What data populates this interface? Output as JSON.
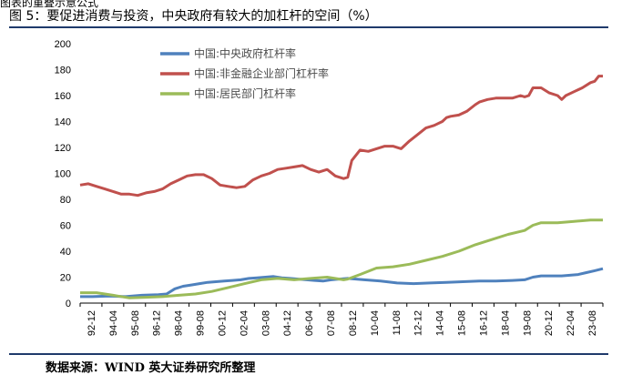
{
  "header": {
    "cut_text": "图表的重叠示意公式",
    "title": "图 5：要促进消费与投资，中央政府有较大的加杠杆的空间（%）"
  },
  "source": {
    "text": "数据来源：WIND  英大证券研究所整理"
  },
  "chart_data": {
    "type": "line",
    "title": "图 5：要促进消费与投资，中央政府有较大的加杠杆的空间（%）",
    "xlabel": "",
    "ylabel": "",
    "ylim": [
      0,
      200
    ],
    "yticks": [
      "0",
      "20",
      "40",
      "60",
      "80",
      "100",
      "120",
      "140",
      "160",
      "180",
      "200"
    ],
    "grid": false,
    "legend_position": "top-left",
    "x_ticks": [
      "92-12",
      "94-04",
      "95-08",
      "96-12",
      "98-04",
      "99-08",
      "00-12",
      "02-04",
      "03-08",
      "04-12",
      "06-04",
      "07-08",
      "08-12",
      "10-04",
      "11-08",
      "12-12",
      "14-04",
      "15-08",
      "16-12",
      "18-04",
      "19-08",
      "20-12",
      "22-04",
      "23-08"
    ],
    "x_range": [
      1992.75,
      2024.5
    ],
    "series": [
      {
        "name": "中国:中央政府杠杆率",
        "color": "#4f81bd",
        "points": [
          [
            1992.75,
            5
          ],
          [
            1993.5,
            5
          ],
          [
            1994.5,
            5.5
          ],
          [
            1995.5,
            5
          ],
          [
            1996.5,
            6
          ],
          [
            1997.5,
            6.5
          ],
          [
            1998.0,
            7
          ],
          [
            1998.5,
            11
          ],
          [
            1999.0,
            13
          ],
          [
            1999.5,
            14
          ],
          [
            2000.0,
            15
          ],
          [
            2000.5,
            16
          ],
          [
            2001.0,
            16.5
          ],
          [
            2001.5,
            17
          ],
          [
            2002.0,
            17.5
          ],
          [
            2002.5,
            18
          ],
          [
            2003.0,
            19
          ],
          [
            2003.5,
            19.5
          ],
          [
            2004.0,
            20
          ],
          [
            2004.5,
            20.5
          ],
          [
            2005.0,
            19.5
          ],
          [
            2005.5,
            19
          ],
          [
            2006.0,
            18.5
          ],
          [
            2006.5,
            18
          ],
          [
            2007.0,
            17.5
          ],
          [
            2007.5,
            17
          ],
          [
            2008.0,
            18
          ],
          [
            2008.5,
            18.5
          ],
          [
            2009.0,
            19
          ],
          [
            2009.5,
            18.5
          ],
          [
            2010.0,
            18
          ],
          [
            2011.0,
            17
          ],
          [
            2012.0,
            15.5
          ],
          [
            2013.0,
            15
          ],
          [
            2014.0,
            15.5
          ],
          [
            2015.0,
            16
          ],
          [
            2016.0,
            16.5
          ],
          [
            2017.0,
            17
          ],
          [
            2018.0,
            17
          ],
          [
            2019.0,
            17.5
          ],
          [
            2019.75,
            18
          ],
          [
            2020.25,
            20
          ],
          [
            2020.75,
            21
          ],
          [
            2021.5,
            21
          ],
          [
            2022.0,
            21
          ],
          [
            2022.5,
            21.5
          ],
          [
            2023.0,
            22
          ],
          [
            2023.5,
            23.5
          ],
          [
            2024.0,
            25
          ],
          [
            2024.5,
            26.5
          ]
        ]
      },
      {
        "name": "中国:非金融企业部门杠杆率",
        "color": "#c0504d",
        "points": [
          [
            1992.75,
            91
          ],
          [
            1993.25,
            92
          ],
          [
            1993.75,
            90
          ],
          [
            1994.25,
            88
          ],
          [
            1994.75,
            86
          ],
          [
            1995.25,
            84
          ],
          [
            1995.75,
            84
          ],
          [
            1996.25,
            83
          ],
          [
            1996.75,
            85
          ],
          [
            1997.25,
            86
          ],
          [
            1997.75,
            88
          ],
          [
            1998.25,
            92
          ],
          [
            1998.75,
            95
          ],
          [
            1999.25,
            98
          ],
          [
            1999.75,
            99
          ],
          [
            2000.25,
            99
          ],
          [
            2000.75,
            96
          ],
          [
            2001.25,
            91
          ],
          [
            2001.75,
            90
          ],
          [
            2002.25,
            89
          ],
          [
            2002.75,
            90
          ],
          [
            2003.25,
            95
          ],
          [
            2003.75,
            98
          ],
          [
            2004.25,
            100
          ],
          [
            2004.75,
            103
          ],
          [
            2005.25,
            104
          ],
          [
            2005.75,
            105
          ],
          [
            2006.25,
            106
          ],
          [
            2006.75,
            103
          ],
          [
            2007.25,
            101
          ],
          [
            2007.75,
            103
          ],
          [
            2008.25,
            98
          ],
          [
            2008.75,
            96
          ],
          [
            2009.0,
            97
          ],
          [
            2009.25,
            110
          ],
          [
            2009.75,
            118
          ],
          [
            2010.25,
            117
          ],
          [
            2010.75,
            119
          ],
          [
            2011.25,
            121
          ],
          [
            2011.75,
            121
          ],
          [
            2012.25,
            119
          ],
          [
            2012.75,
            125
          ],
          [
            2013.25,
            130
          ],
          [
            2013.75,
            135
          ],
          [
            2014.25,
            137
          ],
          [
            2014.75,
            140
          ],
          [
            2015.0,
            143
          ],
          [
            2015.25,
            144
          ],
          [
            2015.75,
            145
          ],
          [
            2016.25,
            148
          ],
          [
            2016.75,
            153
          ],
          [
            2017.0,
            155
          ],
          [
            2017.5,
            157
          ],
          [
            2018.0,
            158
          ],
          [
            2018.5,
            158
          ],
          [
            2019.0,
            158
          ],
          [
            2019.5,
            160
          ],
          [
            2019.75,
            159
          ],
          [
            2020.0,
            160
          ],
          [
            2020.25,
            166
          ],
          [
            2020.75,
            166
          ],
          [
            2021.25,
            162
          ],
          [
            2021.75,
            160
          ],
          [
            2022.0,
            157
          ],
          [
            2022.25,
            160
          ],
          [
            2022.75,
            163
          ],
          [
            2023.25,
            166
          ],
          [
            2023.75,
            170
          ],
          [
            2024.0,
            171
          ],
          [
            2024.25,
            175
          ],
          [
            2024.5,
            175
          ]
        ]
      },
      {
        "name": "中国:居民部门杠杆率",
        "color": "#9bbb59",
        "points": [
          [
            1992.75,
            8
          ],
          [
            1993.75,
            8
          ],
          [
            1994.75,
            6
          ],
          [
            1995.75,
            4
          ],
          [
            1996.75,
            4.5
          ],
          [
            1997.75,
            5
          ],
          [
            1998.75,
            6
          ],
          [
            1999.75,
            7
          ],
          [
            2000.75,
            9
          ],
          [
            2001.75,
            12
          ],
          [
            2002.75,
            15
          ],
          [
            2003.75,
            18
          ],
          [
            2004.75,
            19
          ],
          [
            2005.75,
            18
          ],
          [
            2006.75,
            19
          ],
          [
            2007.75,
            20
          ],
          [
            2008.75,
            18
          ],
          [
            2009.0,
            18.5
          ],
          [
            2009.75,
            22
          ],
          [
            2010.75,
            27
          ],
          [
            2011.75,
            28
          ],
          [
            2012.75,
            30
          ],
          [
            2013.75,
            33
          ],
          [
            2014.75,
            36
          ],
          [
            2015.75,
            40
          ],
          [
            2016.75,
            45
          ],
          [
            2017.75,
            49
          ],
          [
            2018.75,
            53
          ],
          [
            2019.75,
            56
          ],
          [
            2020.25,
            60
          ],
          [
            2020.75,
            62
          ],
          [
            2021.75,
            62
          ],
          [
            2022.75,
            63
          ],
          [
            2023.75,
            64
          ],
          [
            2024.5,
            64
          ]
        ]
      }
    ]
  }
}
